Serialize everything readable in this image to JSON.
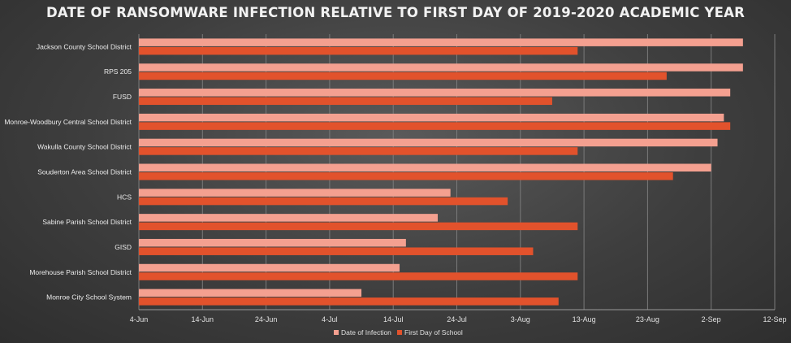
{
  "chart_data": {
    "type": "bar",
    "orientation": "horizontal",
    "title": "DATE OF RANSOMWARE INFECTION RELATIVE TO FIRST DAY OF 2019-2020 ACADEMIC YEAR",
    "xlabel": "",
    "ylabel": "",
    "x_ticks": [
      "4-Jun",
      "14-Jun",
      "24-Jun",
      "4-Jul",
      "14-Jul",
      "24-Jul",
      "3-Aug",
      "13-Aug",
      "23-Aug",
      "2-Sep",
      "12-Sep"
    ],
    "xlim": [
      "2019-06-04",
      "2019-09-12"
    ],
    "grid": true,
    "legend_position": "bottom",
    "categories": [
      "Jackson County School District",
      "RPS 205",
      "FUSD",
      "Monroe-Woodbury Central School District",
      "Wakulla County School District",
      "Souderton Area School District",
      "HCS",
      "Sabine Parish School District",
      "GISD",
      "Morehouse Parish School District",
      "Monroe City School System"
    ],
    "series": [
      {
        "name": "Date of Infection",
        "color": "#f4a090",
        "values": [
          "2019-09-07",
          "2019-09-07",
          "2019-09-05",
          "2019-09-04",
          "2019-09-03",
          "2019-09-02",
          "2019-07-23",
          "2019-07-21",
          "2019-07-16",
          "2019-07-15",
          "2019-07-09"
        ]
      },
      {
        "name": "First Day of School",
        "color": "#e2522c",
        "values": [
          "2019-08-12",
          "2019-08-26",
          "2019-08-08",
          "2019-09-05",
          "2019-08-12",
          "2019-08-27",
          "2019-08-01",
          "2019-08-12",
          "2019-08-05",
          "2019-08-12",
          "2019-08-09"
        ]
      }
    ]
  }
}
